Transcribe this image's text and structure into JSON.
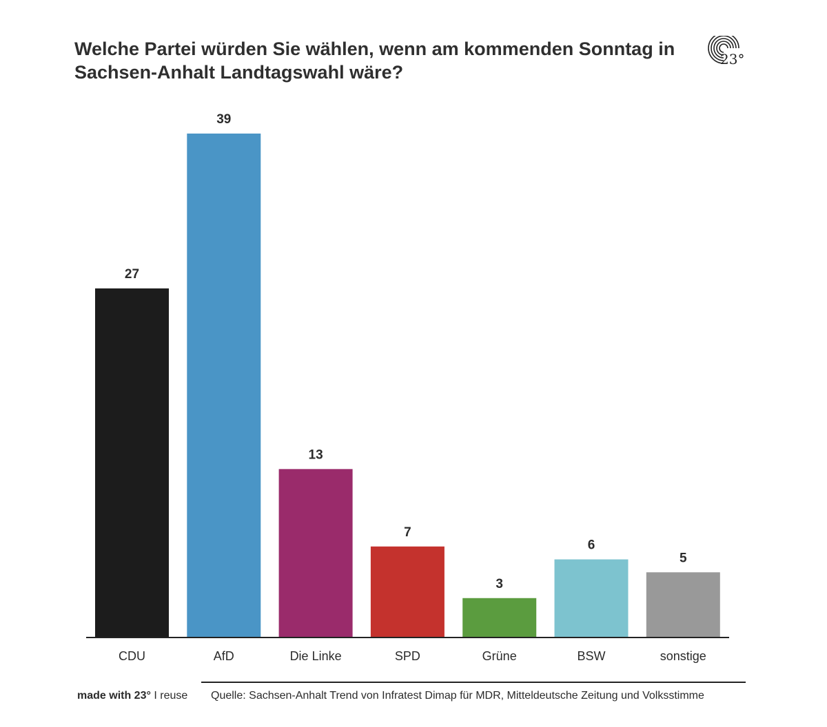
{
  "chart_data": {
    "type": "bar",
    "title": "Welche Partei würden Sie wählen, wenn am kommenden Sonntag in Sachsen-Anhalt Landtagswahl wäre?",
    "categories": [
      "CDU",
      "AfD",
      "Die Linke",
      "SPD",
      "Grüne",
      "BSW",
      "sonstige"
    ],
    "values": [
      27,
      39,
      13,
      7,
      3,
      6,
      5
    ],
    "colors": [
      "#1c1c1c",
      "#4a95c6",
      "#9a2b6b",
      "#c4322d",
      "#5b9c3f",
      "#7dc3cf",
      "#999999"
    ],
    "xlabel": "",
    "ylabel": "",
    "ylim": [
      0,
      39
    ],
    "grid": false
  },
  "logo": {
    "text": "23°",
    "icon": "concentric-arcs-logo-icon"
  },
  "footer": {
    "made_with": "made with 23°",
    "separator": "I",
    "reuse": "reuse",
    "source": "Quelle: Sachsen-Anhalt Trend von Infratest Dimap für MDR, Mitteldeutsche Zeitung und Volksstimme"
  }
}
